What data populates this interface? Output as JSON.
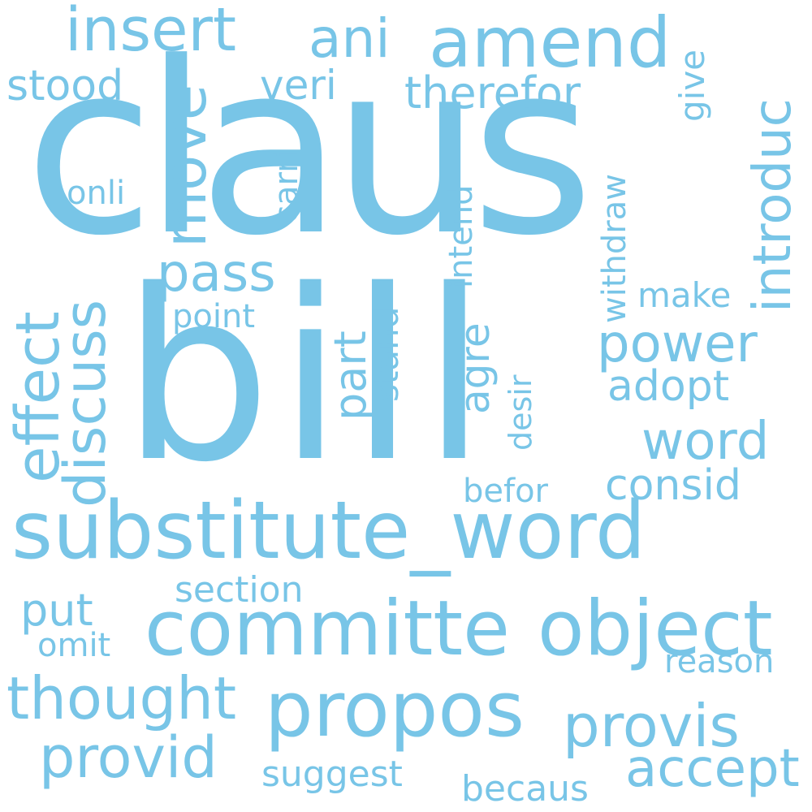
{
  "color": "#78c5e7",
  "background": "#ffffff",
  "words": [
    "claus",
    "bill",
    "substitute_word",
    "committe",
    "object",
    "propos",
    "insert",
    "amend",
    "ani",
    "thought",
    "provis",
    "provid",
    "accept",
    "power",
    "word",
    "pass",
    "consid",
    "therefor",
    "adopt",
    "stood",
    "veri",
    "section",
    "befor",
    "reason",
    "suggest",
    "becaus",
    "put",
    "omit",
    "make",
    "point",
    "onli",
    "effect",
    "discuss",
    "move",
    "introduc",
    "part",
    "agre",
    "stand",
    "intend",
    "withdraw",
    "carri",
    "give",
    "desir"
  ]
}
